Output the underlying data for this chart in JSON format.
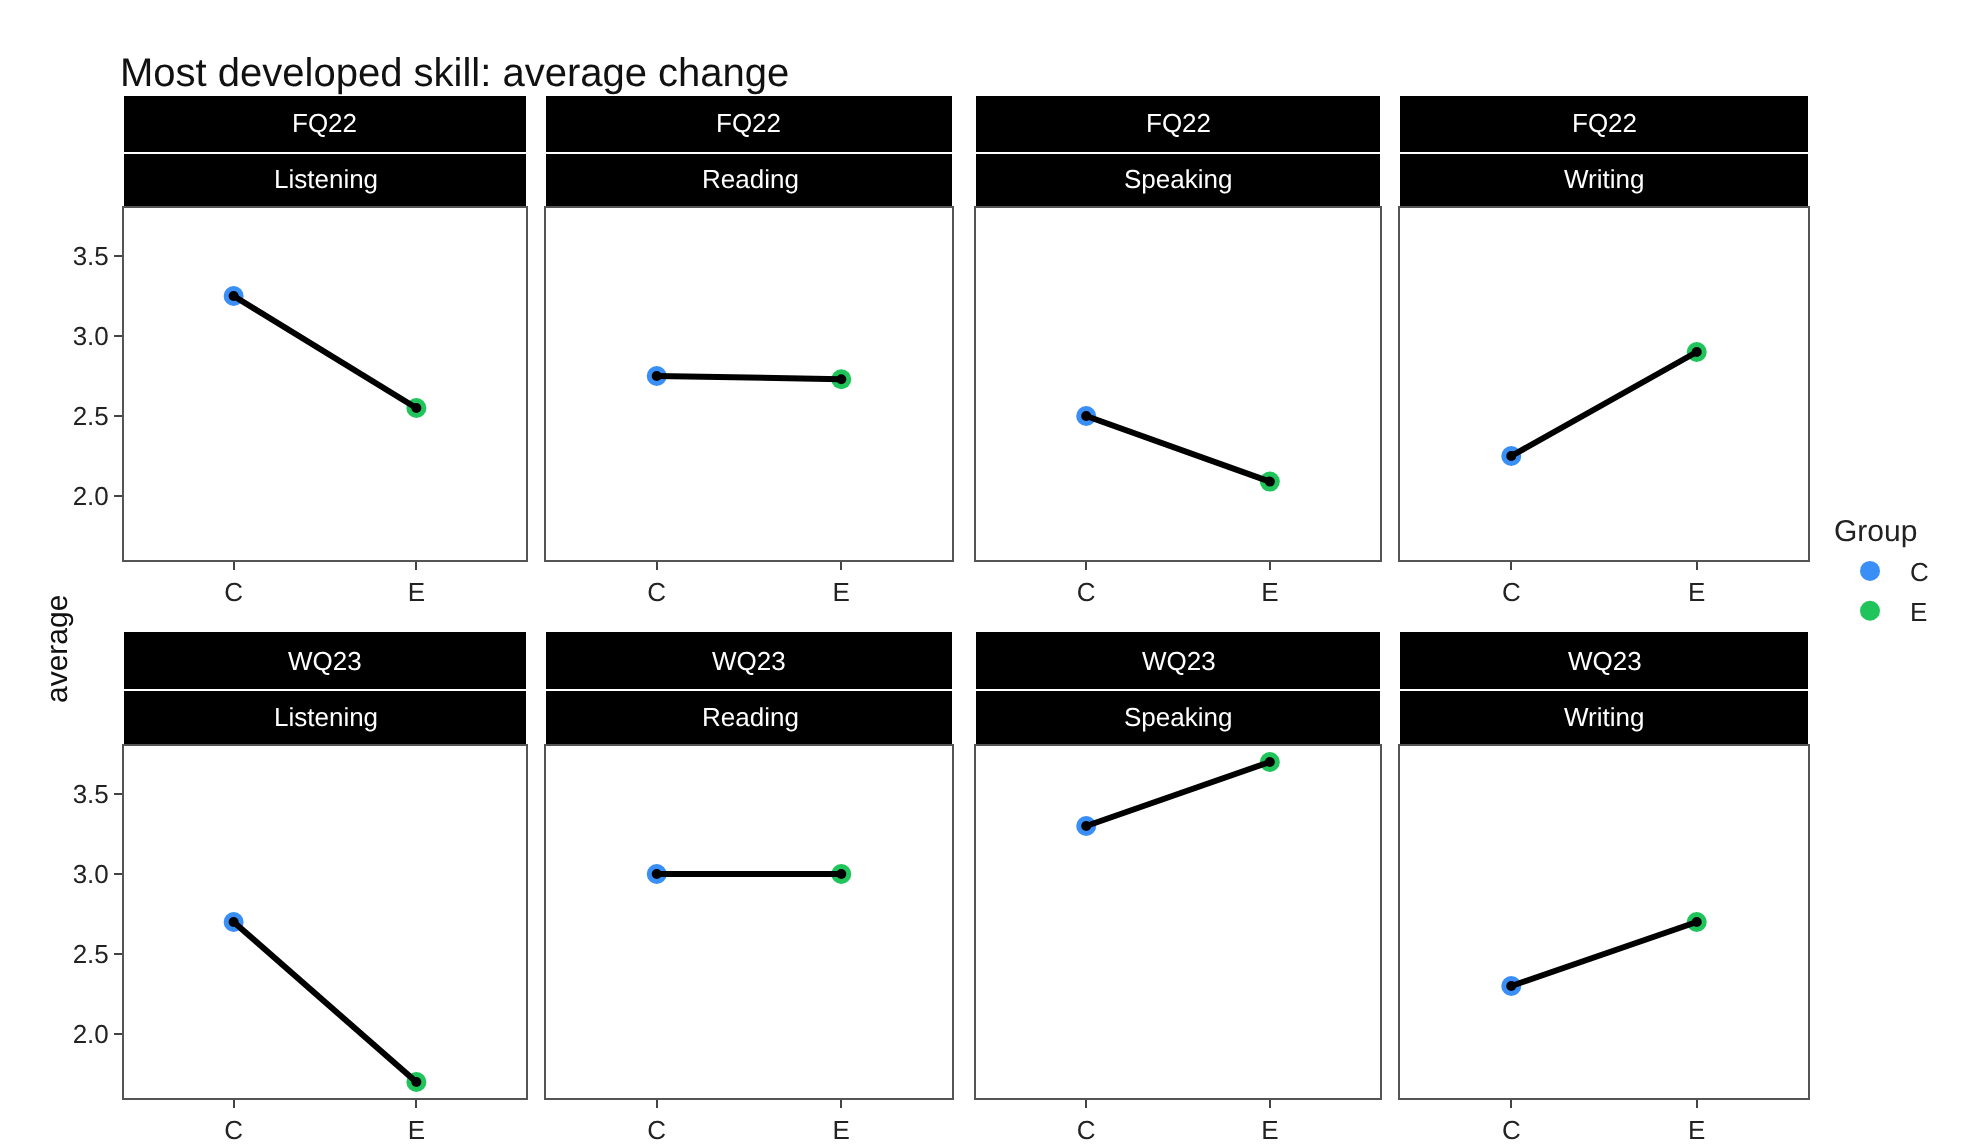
{
  "chart_data": [
    {
      "type": "line",
      "title": "FQ22",
      "subtitle": "Listening",
      "annotations": [
        "Most developed skill: average change"
      ],
      "categories": [
        "C",
        "E"
      ],
      "ylim": [
        1.6,
        3.8
      ],
      "yticks": [
        {
          "value": 2,
          "label": "2.0"
        },
        {
          "value": 2.5,
          "label": "2.5"
        },
        {
          "value": 3,
          "label": "3.0"
        },
        {
          "value": 3.5,
          "label": "3.5"
        }
      ],
      "marker": "circle",
      "series": [
        {
          "color": "#000000",
          "values": [
            3.25,
            2.55
          ]
        },
        {
          "type": "scatter",
          "color": "#3a8ff7",
          "x": [
            "C"
          ],
          "values": [
            3.25
          ]
        },
        {
          "type": "scatter",
          "color": "#1fc45a",
          "x": [
            "E"
          ],
          "values": [
            2.55
          ]
        }
      ]
    },
    {
      "type": "line",
      "title": "FQ22",
      "subtitle": "Reading",
      "categories": [
        "C",
        "E"
      ],
      "ylim": [
        1.6,
        3.8
      ],
      "tick_labels": "x",
      "marker": "circle",
      "series": [
        {
          "color": "#000000",
          "values": [
            2.75,
            2.73
          ]
        },
        {
          "type": "scatter",
          "color": "#3a8ff7",
          "x": [
            "C"
          ],
          "values": [
            2.75
          ]
        },
        {
          "type": "scatter",
          "color": "#1fc45a",
          "x": [
            "E"
          ],
          "values": [
            2.73
          ]
        }
      ]
    },
    {
      "type": "line",
      "title": "FQ22",
      "subtitle": "Speaking",
      "categories": [
        "C",
        "E"
      ],
      "ylim": [
        1.6,
        3.8
      ],
      "tick_labels": "x",
      "marker": "circle",
      "series": [
        {
          "color": "#000000",
          "values": [
            2.5,
            2.09
          ]
        },
        {
          "type": "scatter",
          "color": "#3a8ff7",
          "x": [
            "C"
          ],
          "values": [
            2.5
          ]
        },
        {
          "type": "scatter",
          "color": "#1fc45a",
          "x": [
            "E"
          ],
          "values": [
            2.09
          ]
        }
      ]
    },
    {
      "type": "line",
      "title": "FQ22",
      "subtitle": "Writing",
      "categories": [
        "C",
        "E"
      ],
      "ylim": [
        1.6,
        3.8
      ],
      "tick_labels": "x",
      "marker": "circle",
      "legend": "right",
      "legend_title": "Group",
      "series": [
        {
          "color": "#000000",
          "values": [
            2.25,
            2.9
          ]
        },
        {
          "type": "scatter",
          "name": "C",
          "color": "#3a8ff7",
          "x": [
            "C"
          ],
          "values": [
            2.25
          ]
        },
        {
          "type": "scatter",
          "name": "E",
          "color": "#1fc45a",
          "x": [
            "E"
          ],
          "values": [
            2.9
          ]
        }
      ]
    },
    {
      "type": "line",
      "title": "WQ23",
      "subtitle": "Listening",
      "ylabel": "average",
      "categories": [
        "C",
        "E"
      ],
      "ylim": [
        1.6,
        3.8
      ],
      "yticks": [
        {
          "value": 2,
          "label": "2.0"
        },
        {
          "value": 2.5,
          "label": "2.5"
        },
        {
          "value": 3,
          "label": "3.0"
        },
        {
          "value": 3.5,
          "label": "3.5"
        }
      ],
      "marker": "circle",
      "series": [
        {
          "color": "#000000",
          "values": [
            2.7,
            1.7
          ]
        },
        {
          "type": "scatter",
          "color": "#3a8ff7",
          "x": [
            "C"
          ],
          "values": [
            2.7
          ]
        },
        {
          "type": "scatter",
          "color": "#1fc45a",
          "x": [
            "E"
          ],
          "values": [
            1.7
          ]
        }
      ]
    },
    {
      "type": "line",
      "title": "WQ23",
      "subtitle": "Reading",
      "categories": [
        "C",
        "E"
      ],
      "ylim": [
        1.6,
        3.8
      ],
      "tick_labels": "x",
      "marker": "circle",
      "series": [
        {
          "color": "#000000",
          "values": [
            3.0,
            3.0
          ]
        },
        {
          "type": "scatter",
          "color": "#3a8ff7",
          "x": [
            "C"
          ],
          "values": [
            3.0
          ]
        },
        {
          "type": "scatter",
          "color": "#1fc45a",
          "x": [
            "E"
          ],
          "values": [
            3.0
          ]
        }
      ]
    },
    {
      "type": "line",
      "title": "WQ23",
      "subtitle": "Speaking",
      "categories": [
        "C",
        "E"
      ],
      "ylim": [
        1.6,
        3.8
      ],
      "tick_labels": "x",
      "marker": "circle",
      "series": [
        {
          "color": "#000000",
          "values": [
            3.3,
            3.7
          ]
        },
        {
          "type": "scatter",
          "color": "#3a8ff7",
          "x": [
            "C"
          ],
          "values": [
            3.3
          ]
        },
        {
          "type": "scatter",
          "color": "#1fc45a",
          "x": [
            "E"
          ],
          "values": [
            3.7
          ]
        }
      ]
    },
    {
      "type": "line",
      "title": "WQ23",
      "subtitle": "Writing",
      "categories": [
        "C",
        "E"
      ],
      "ylim": [
        1.6,
        3.8
      ],
      "tick_labels": "x",
      "marker": "circle",
      "series": [
        {
          "color": "#000000",
          "values": [
            2.3,
            2.7
          ]
        },
        {
          "type": "scatter",
          "color": "#3a8ff7",
          "x": [
            "C"
          ],
          "values": [
            2.3
          ]
        },
        {
          "type": "scatter",
          "color": "#1fc45a",
          "x": [
            "E"
          ],
          "values": [
            2.7
          ]
        }
      ]
    }
  ]
}
